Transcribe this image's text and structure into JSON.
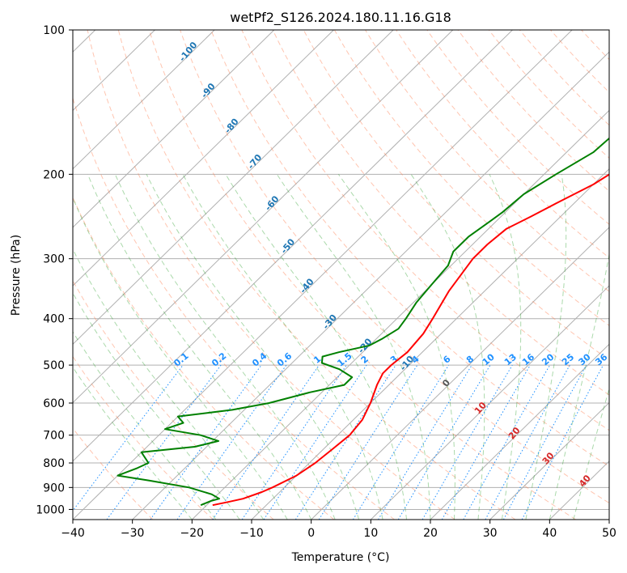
{
  "chart_data": {
    "type": "line",
    "title": "wetPf2_S126.2024.180.11.16.G18",
    "xlabel": "Temperature (°C)",
    "ylabel": "Pressure (hPa)",
    "xlim": [
      -40,
      50
    ],
    "ylim": [
      1050,
      100
    ],
    "y_scale": "log",
    "x_ticks": [
      "−40",
      "−30",
      "−20",
      "−10",
      "0",
      "10",
      "20",
      "30",
      "40",
      "50"
    ],
    "y_ticks": [
      "100",
      "200",
      "300",
      "400",
      "500",
      "600",
      "700",
      "800",
      "900",
      "1000"
    ],
    "grid": "on",
    "series": [
      {
        "color": "#ff0000",
        "p": [
          980,
          965,
          950,
          920,
          900,
          850,
          800,
          750,
          700,
          650,
          600,
          550,
          520,
          500,
          470,
          430,
          400,
          350,
          300,
          280,
          260,
          245,
          230,
          210,
          190,
          175,
          160,
          140,
          125,
          115,
          105,
          100
        ],
        "t": [
          -19,
          -17,
          -15,
          -13,
          -12,
          -10,
          -9,
          -8.5,
          -8,
          -8.5,
          -10,
          -12,
          -13,
          -13,
          -12.5,
          -13,
          -14,
          -16,
          -17.5,
          -17.5,
          -17,
          -15,
          -13,
          -10,
          -8,
          -6,
          -4,
          -3,
          -1,
          0,
          2,
          3
        ]
      },
      {
        "color": "#008000",
        "p": [
          980,
          960,
          950,
          930,
          900,
          870,
          850,
          820,
          800,
          760,
          740,
          720,
          700,
          680,
          660,
          640,
          620,
          600,
          570,
          550,
          530,
          510,
          495,
          480,
          470,
          455,
          440,
          420,
          400,
          370,
          340,
          310,
          290,
          270,
          250,
          240,
          220,
          200,
          180,
          160,
          140,
          120,
          110,
          100
        ],
        "t": [
          -21,
          -20,
          -19,
          -21,
          -26,
          -34,
          -40,
          -38,
          -37,
          -40,
          -32,
          -29,
          -33,
          -40,
          -38,
          -40,
          -32,
          -27,
          -22,
          -17.5,
          -17.5,
          -21,
          -25,
          -26,
          -24,
          -20,
          -19,
          -18,
          -18.5,
          -19.5,
          -20,
          -20.5,
          -22,
          -22,
          -21,
          -20.5,
          -20,
          -18,
          -15.5,
          -15,
          -13,
          -9,
          -5,
          -2
        ]
      }
    ],
    "dry_adiabat_labels": [
      "-100",
      "-90",
      "-80",
      "-70",
      "-60",
      "-50",
      "-40",
      "-30",
      "-20",
      "-10"
    ],
    "mixing_ratio_labels": [
      "0.1",
      "0.2",
      "0.4",
      "0.6",
      "1",
      "1.5",
      "2",
      "3",
      "4",
      "6",
      "8",
      "10",
      "13",
      "16",
      "20",
      "25",
      "30",
      "36"
    ],
    "moist_adiabat_labels": [
      "0",
      "10",
      "20",
      "30",
      "40"
    ],
    "colors": {
      "temperature": "#ff0000",
      "dewpoint": "#008000",
      "dry_adiabat": "#ff7f50",
      "moist_adiabat": "#2ca02c",
      "mixing_ratio": "#1e90ff",
      "dry_label": "#1f77b4",
      "moist_label": "#d62728",
      "isotherm": "#808080",
      "grid": "#b0b0b0"
    }
  }
}
